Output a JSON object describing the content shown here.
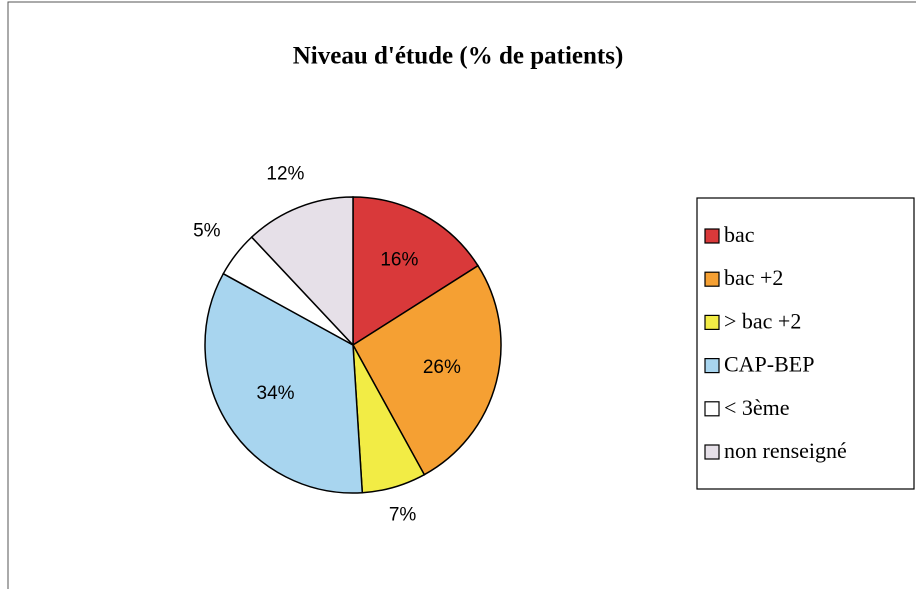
{
  "chart_data": {
    "type": "pie",
    "title": "Niveau d'étude (% de patients)",
    "categories": [
      "bac",
      "bac +2",
      "> bac +2",
      "CAP-BEP",
      "< 3ème",
      "non renseigné"
    ],
    "values": [
      16,
      26,
      7,
      34,
      5,
      12
    ],
    "value_labels": [
      "16%",
      "26%",
      "7%",
      "34%",
      "5%",
      "12%"
    ],
    "colors": [
      "#d9393a",
      "#f5a033",
      "#f2ec45",
      "#a8d5ef",
      "#ffffff",
      "#e6e0e8"
    ],
    "legend": "right"
  }
}
